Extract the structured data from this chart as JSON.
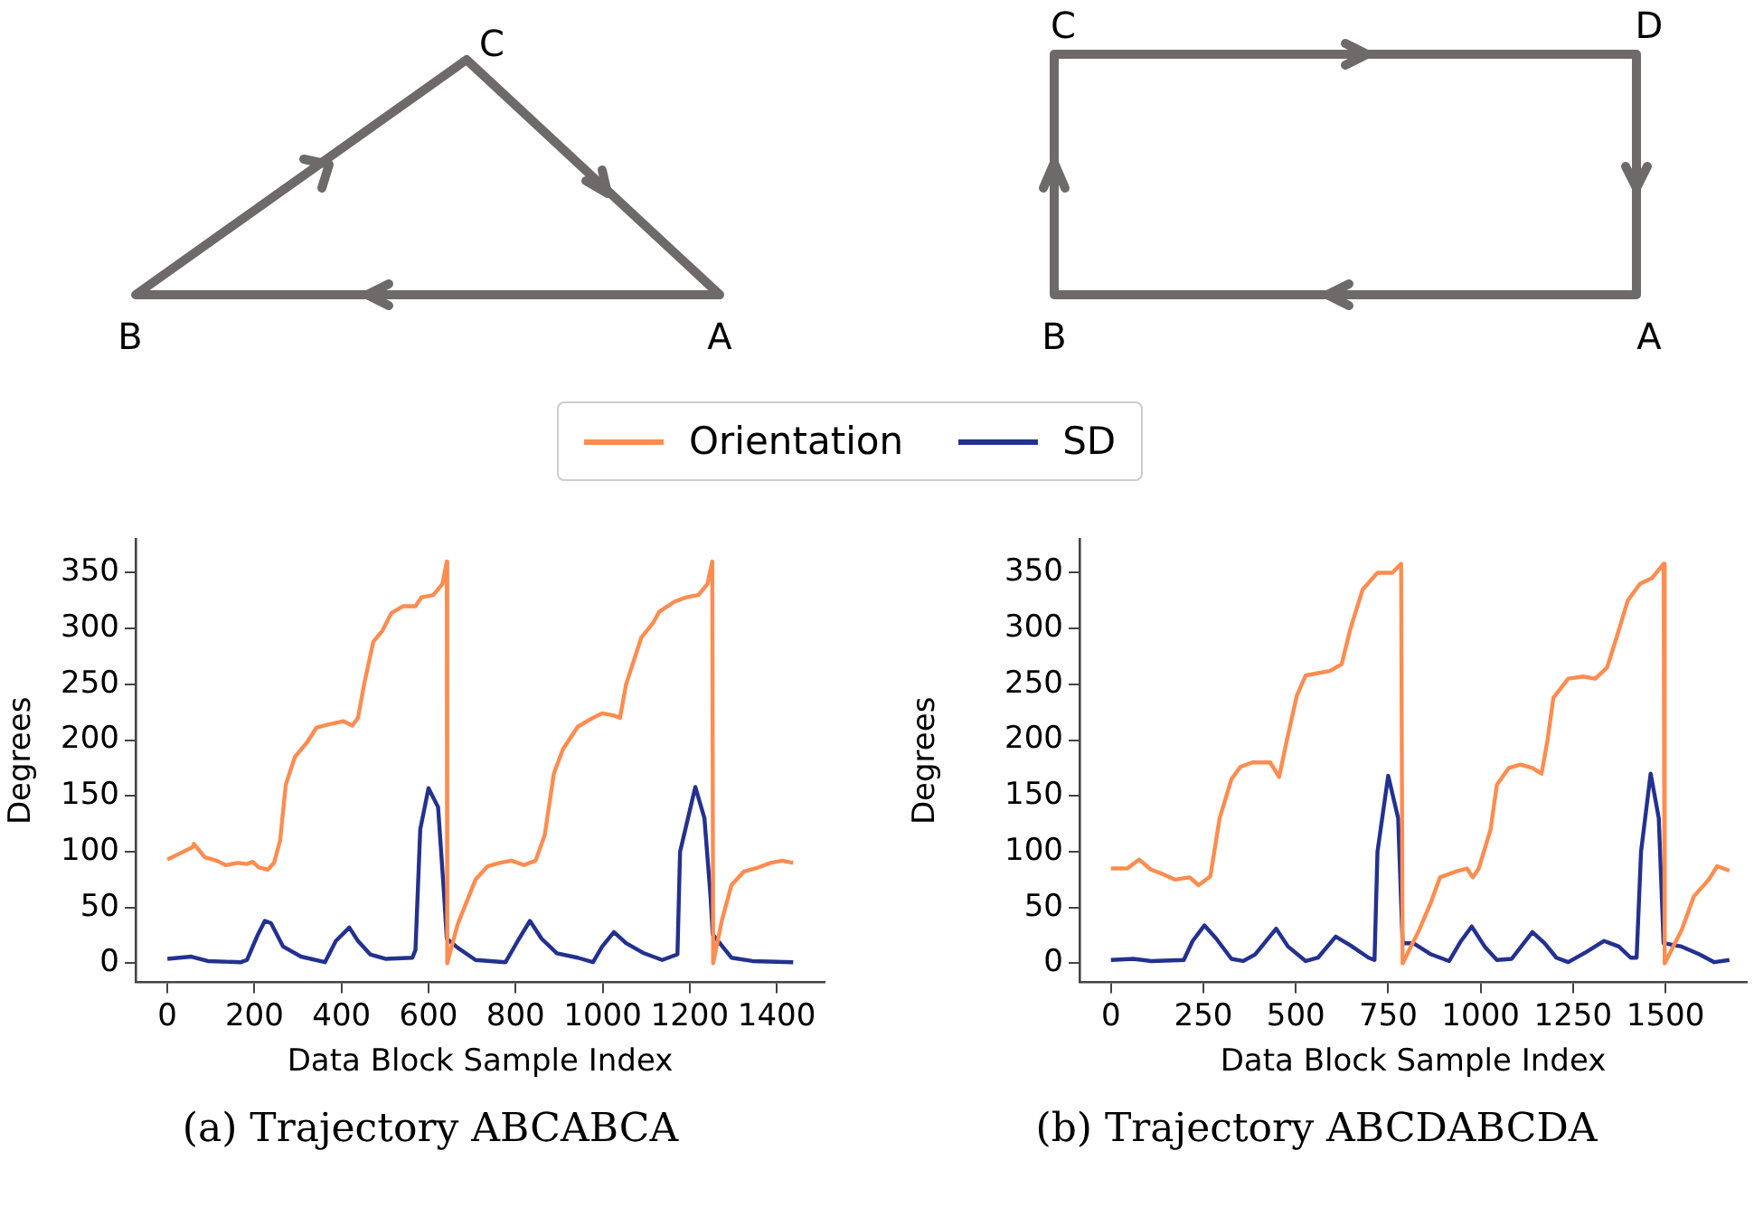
{
  "chart_data": [
    {
      "type": "line",
      "xlabel": "Data Block Sample Index",
      "ylabel": "Degrees",
      "xlim": [
        -73,
        1510
      ],
      "xticks": [
        0,
        200,
        400,
        600,
        800,
        1000,
        1200,
        1400
      ],
      "ylim": [
        -17,
        380
      ],
      "yticks": [
        0,
        50,
        100,
        150,
        200,
        250,
        300,
        350
      ],
      "grid": false,
      "legend": "top",
      "marker": "none",
      "line_style": "solid",
      "annotations": [
        "C",
        "B",
        "A",
        "(a) Trajectory ABCABCA"
      ],
      "series": [
        {
          "name": "Orientation",
          "color": "#ff8c50",
          "x": [
            0,
            58,
            61,
            86,
            113,
            134,
            162,
            183,
            196,
            210,
            231,
            245,
            259,
            272,
            293,
            321,
            342,
            369,
            404,
            425,
            438,
            452,
            473,
            494,
            515,
            542,
            570,
            584,
            611,
            632,
            642,
            643,
            667,
            708,
            736,
            763,
            791,
            819,
            846,
            867,
            888,
            909,
            943,
            978,
            999,
            1026,
            1040,
            1054,
            1089,
            1116,
            1130,
            1165,
            1192,
            1220,
            1241,
            1252,
            1254,
            1275,
            1296,
            1324,
            1358,
            1386,
            1413,
            1438
          ],
          "values": [
            93,
            104,
            107,
            95,
            92,
            88,
            90,
            89,
            91,
            86,
            84,
            90,
            110,
            160,
            185,
            198,
            211,
            214,
            217,
            213,
            220,
            250,
            288,
            298,
            314,
            320,
            320,
            328,
            330,
            340,
            360,
            0,
            35,
            75,
            87,
            90,
            92,
            88,
            92,
            115,
            170,
            192,
            212,
            220,
            224,
            222,
            220,
            250,
            292,
            305,
            315,
            324,
            328,
            330,
            340,
            360,
            0,
            40,
            70,
            82,
            86,
            90,
            92,
            90
          ]
        },
        {
          "name": "SD",
          "color": "#23318f",
          "x": [
            0,
            55,
            93,
            169,
            183,
            207,
            224,
            238,
            266,
            307,
            362,
            387,
            418,
            438,
            466,
            501,
            563,
            570,
            581,
            600,
            622,
            636,
            642,
            667,
            708,
            777,
            805,
            833,
            860,
            895,
            943,
            978,
            999,
            1026,
            1054,
            1095,
            1137,
            1172,
            1178,
            1213,
            1234,
            1248,
            1253,
            1296,
            1344,
            1438
          ],
          "values": [
            4,
            6,
            2,
            1,
            3,
            25,
            38,
            36,
            15,
            6,
            1,
            20,
            32,
            20,
            8,
            4,
            5,
            12,
            120,
            157,
            140,
            60,
            22,
            14,
            3,
            1,
            20,
            38,
            22,
            9,
            5,
            1,
            15,
            28,
            18,
            9,
            3,
            8,
            100,
            158,
            130,
            60,
            26,
            5,
            2,
            1
          ]
        }
      ]
    },
    {
      "type": "line",
      "xlabel": "Data Block Sample Index",
      "ylabel": "Degrees",
      "xlim": [
        -85,
        1720
      ],
      "xticks": [
        0,
        250,
        500,
        750,
        1000,
        1250,
        1500
      ],
      "ylim": [
        -17,
        380
      ],
      "yticks": [
        0,
        50,
        100,
        150,
        200,
        250,
        300,
        350
      ],
      "grid": false,
      "legend": "top",
      "marker": "none",
      "line_style": "solid",
      "annotations": [
        "C",
        "D",
        "B",
        "A",
        "(b) Trajectory ABCDABCDA"
      ],
      "series": [
        {
          "name": "Orientation",
          "color": "#ff8c50",
          "x": [
            0,
            44,
            76,
            108,
            140,
            173,
            213,
            237,
            269,
            294,
            326,
            350,
            382,
            431,
            455,
            476,
            503,
            527,
            560,
            592,
            624,
            648,
            681,
            721,
            761,
            785,
            789,
            834,
            866,
            890,
            931,
            963,
            979,
            995,
            1027,
            1044,
            1076,
            1108,
            1140,
            1165,
            1181,
            1197,
            1237,
            1277,
            1310,
            1342,
            1366,
            1398,
            1431,
            1463,
            1495,
            1498,
            1544,
            1577,
            1617,
            1640,
            1673
          ],
          "values": [
            85,
            85,
            93,
            84,
            80,
            75,
            77,
            70,
            78,
            130,
            165,
            176,
            180,
            180,
            167,
            200,
            240,
            258,
            260,
            262,
            268,
            300,
            335,
            350,
            350,
            358,
            0,
            30,
            55,
            77,
            82,
            85,
            77,
            85,
            120,
            160,
            175,
            178,
            175,
            170,
            200,
            238,
            255,
            257,
            255,
            265,
            290,
            325,
            340,
            345,
            358,
            0,
            30,
            60,
            75,
            87,
            83
          ]
        },
        {
          "name": "SD",
          "color": "#23318f",
          "x": [
            0,
            60,
            108,
            197,
            221,
            253,
            285,
            326,
            358,
            390,
            447,
            479,
            527,
            560,
            608,
            648,
            697,
            713,
            721,
            750,
            777,
            789,
            818,
            866,
            915,
            947,
            976,
            1011,
            1044,
            1084,
            1140,
            1173,
            1205,
            1237,
            1285,
            1334,
            1374,
            1406,
            1422,
            1434,
            1460,
            1482,
            1495,
            1544,
            1592,
            1632,
            1673
          ],
          "values": [
            3,
            4,
            2,
            3,
            20,
            34,
            22,
            4,
            2,
            8,
            31,
            15,
            2,
            5,
            24,
            16,
            5,
            3,
            100,
            168,
            130,
            18,
            18,
            8,
            2,
            20,
            33,
            15,
            3,
            4,
            28,
            18,
            5,
            1,
            10,
            20,
            15,
            5,
            5,
            100,
            170,
            130,
            18,
            15,
            8,
            1,
            3
          ]
        }
      ]
    }
  ]
}
